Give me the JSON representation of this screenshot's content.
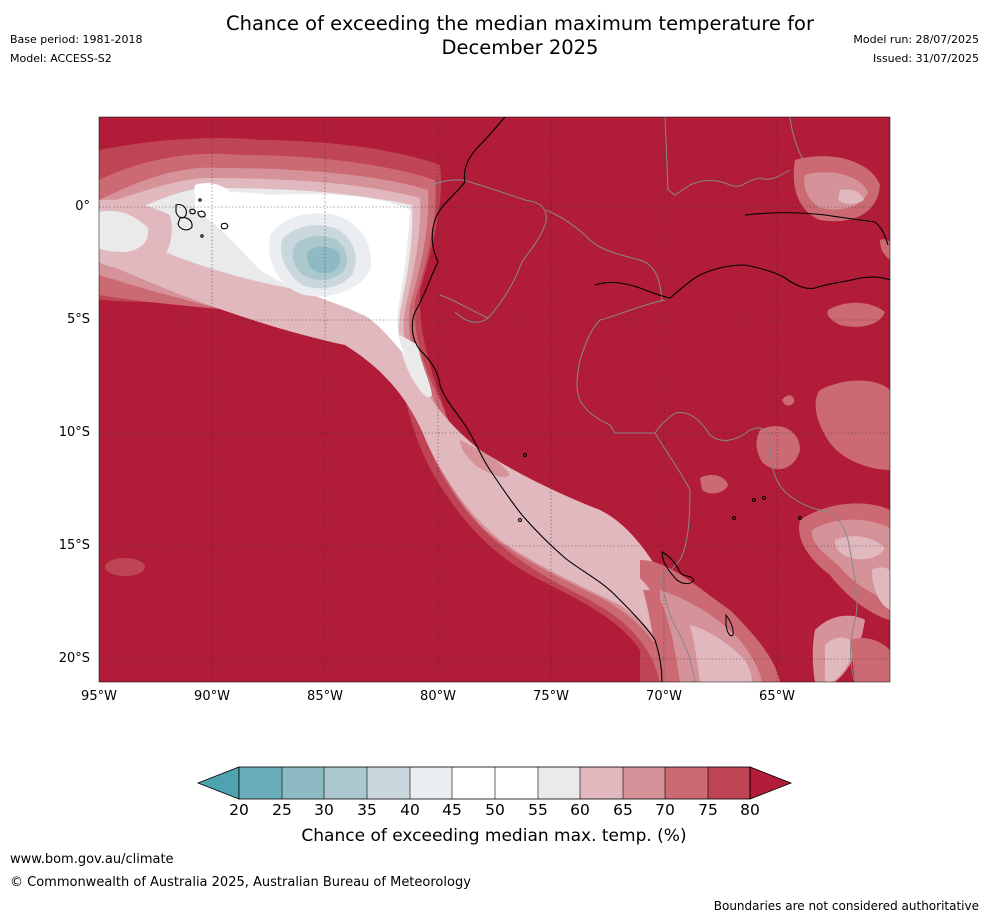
{
  "header": {
    "title_line1": "Chance of exceeding the median maximum temperature for",
    "title_line2": "December 2025",
    "base_period": "Base period: 1981-2018",
    "model": "Model: ACCESS-S2",
    "model_run": "Model run: 28/07/2025",
    "issued": "Issued: 31/07/2025"
  },
  "map": {
    "lat_ticks": [
      "0°",
      "5°S",
      "10°S",
      "15°S",
      "20°S"
    ],
    "lon_ticks": [
      "95°W",
      "90°W",
      "85°W",
      "80°W",
      "75°W",
      "70°W",
      "65°W"
    ],
    "colors": {
      "c20": "#4fa3b1",
      "c25": "#6aacb8",
      "c30": "#8ebbc3",
      "c35": "#aac8ce",
      "c40": "#cad7dc",
      "c45": "#eaeef0",
      "c50": "#ffffff",
      "c55": "#ffffff",
      "c60": "#eaeaea",
      "c65": "#e2b8bf",
      "c70": "#d69299",
      "c75": "#cb6a73",
      "c80": "#bf4554",
      "c85": "#b11c39",
      "land": "#b11c39",
      "coast": "#000000",
      "border": "#888888"
    }
  },
  "colorbar": {
    "ticks": [
      "20",
      "25",
      "30",
      "35",
      "40",
      "45",
      "50",
      "55",
      "60",
      "65",
      "70",
      "75",
      "80"
    ],
    "label": "Chance of exceeding median max. temp. (%)"
  },
  "footer": {
    "url": "www.bom.gov.au/climate",
    "copyright": "© Commonwealth of Australia 2025, Australian Bureau of Meteorology",
    "disclaimer": "Boundaries are not considered authoritative"
  }
}
